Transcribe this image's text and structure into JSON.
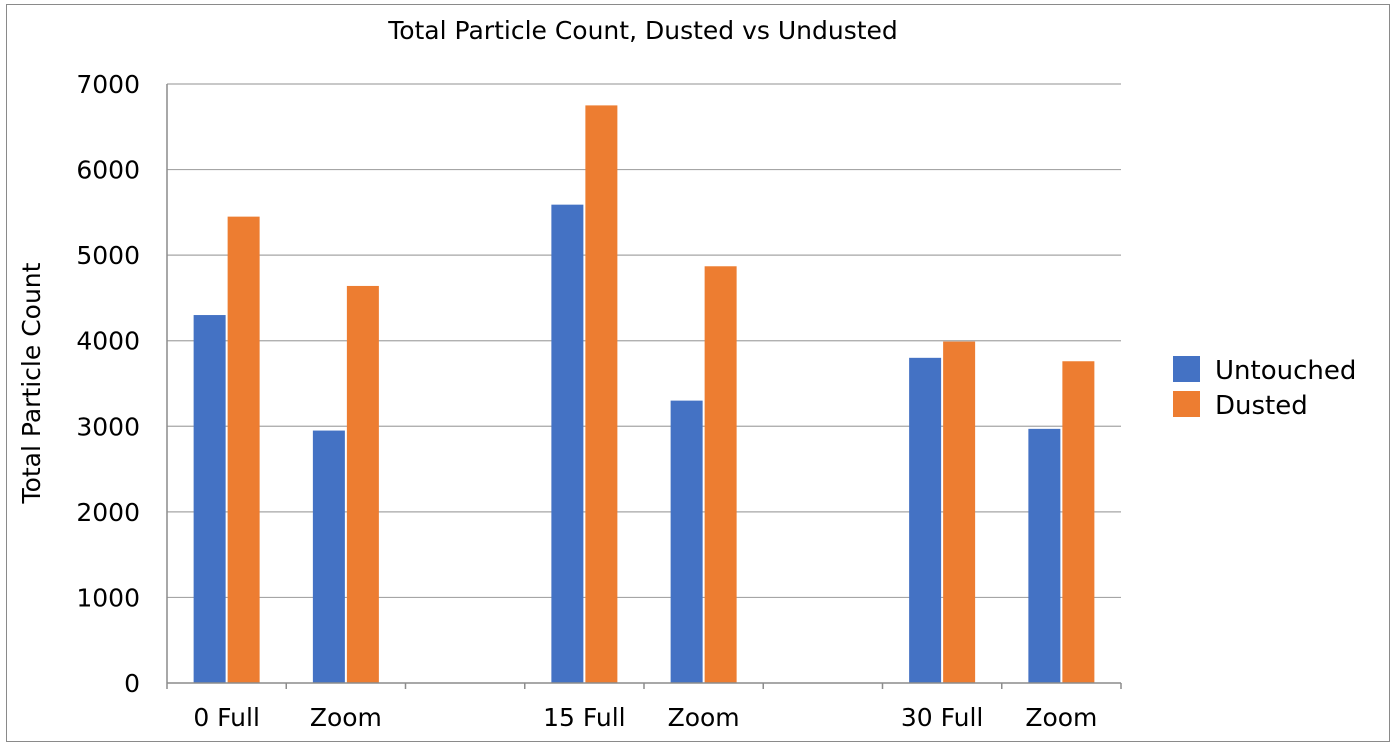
{
  "chart_data": {
    "type": "bar",
    "title": "Total Particle Count, Dusted vs Undusted",
    "xlabel": "",
    "ylabel": "Total Particle Count",
    "ylim": [
      0,
      7000
    ],
    "yticks": [
      0,
      1000,
      2000,
      3000,
      4000,
      5000,
      6000,
      7000
    ],
    "categories": [
      "0 Full",
      "Zoom",
      "",
      "15 Full",
      "Zoom",
      "",
      "30 Full",
      "Zoom"
    ],
    "series": [
      {
        "name": "Untouched",
        "color": "#4472C4",
        "values": [
          4300,
          2950,
          null,
          5590,
          3300,
          null,
          3800,
          2970
        ]
      },
      {
        "name": "Dusted",
        "color": "#ED7D31",
        "values": [
          5450,
          4640,
          null,
          6750,
          4870,
          null,
          3990,
          3760
        ]
      }
    ],
    "grid": "horizontal",
    "legend_position": "right"
  }
}
